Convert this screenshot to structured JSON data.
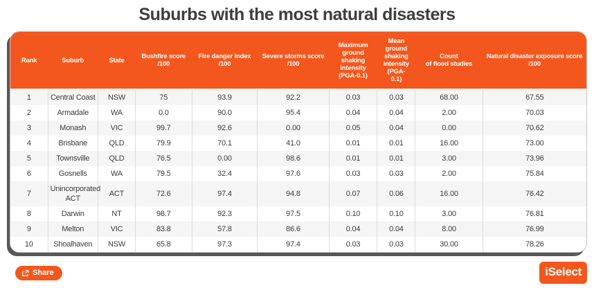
{
  "title": "Suburbs with the most natural disasters",
  "chart_data": {
    "type": "table",
    "title": "Suburbs with the most natural disasters",
    "columns": [
      "Rank",
      "Suburb",
      "State",
      "Bushfire score\n/100",
      "Fire danger index\n/100",
      "Severe storms score\n/100",
      "Maximum\nground\nshaking\nintensity\n(PGA-0.1)",
      "Mean\nground\nshaking\nintensity\n(PGA-\n0.1)",
      "Count\nof flood studies",
      "Natural disaster exposure score\n/100"
    ],
    "rows": [
      [
        "1",
        "Central Coast",
        "NSW",
        "75",
        "93.9",
        "92.2",
        "0.03",
        "0.03",
        "68.00",
        "67.55"
      ],
      [
        "2",
        "Armadale",
        "WA",
        "0.0",
        "90.0",
        "95.4",
        "0.04",
        "0.04",
        "2.00",
        "70.03"
      ],
      [
        "3",
        "Monash",
        "VIC",
        "99.7",
        "92.6",
        "0.00",
        "0.05",
        "0.04",
        "0.00",
        "70.62"
      ],
      [
        "4",
        "Brisbane",
        "QLD",
        "79.9",
        "70.1",
        "41.0",
        "0.01",
        "0.01",
        "16.00",
        "73.00"
      ],
      [
        "5",
        "Townsville",
        "QLD",
        "76.5",
        "0.00",
        "98.6",
        "0.01",
        "0.01",
        "3.00",
        "73.96"
      ],
      [
        "6",
        "Gosnells",
        "WA",
        "79.5",
        "32.4",
        "97.6",
        "0.03",
        "0.03",
        "2.00",
        "75.84"
      ],
      [
        "7",
        "Unincorporated ACT",
        "ACT",
        "72.6",
        "97.4",
        "94.8",
        "0.07",
        "0.06",
        "16.00",
        "76.42"
      ],
      [
        "8",
        "Darwin",
        "NT",
        "98.7",
        "92.3",
        "97.5",
        "0.10",
        "0.10",
        "3.00",
        "76.81"
      ],
      [
        "9",
        "Melton",
        "VIC",
        "83.8",
        "57.8",
        "86.6",
        "0.04",
        "0.04",
        "8.00",
        "76.99"
      ],
      [
        "10",
        "Shoalhaven",
        "NSW",
        "65.8",
        "97.3",
        "97.4",
        "0.03",
        "0.03",
        "30.00",
        "78.26"
      ]
    ]
  },
  "footer": {
    "share_label": "Share",
    "brand": "iSelect"
  },
  "icons": {
    "share": "share-icon"
  },
  "colors": {
    "accent_orange": "#f4571d",
    "title_text": "#3e3e40",
    "row_stripe": "#f5f5f5",
    "card_shadow": "#585858",
    "header_text": "#ffffff",
    "cell_text": "#3a3a3a"
  }
}
